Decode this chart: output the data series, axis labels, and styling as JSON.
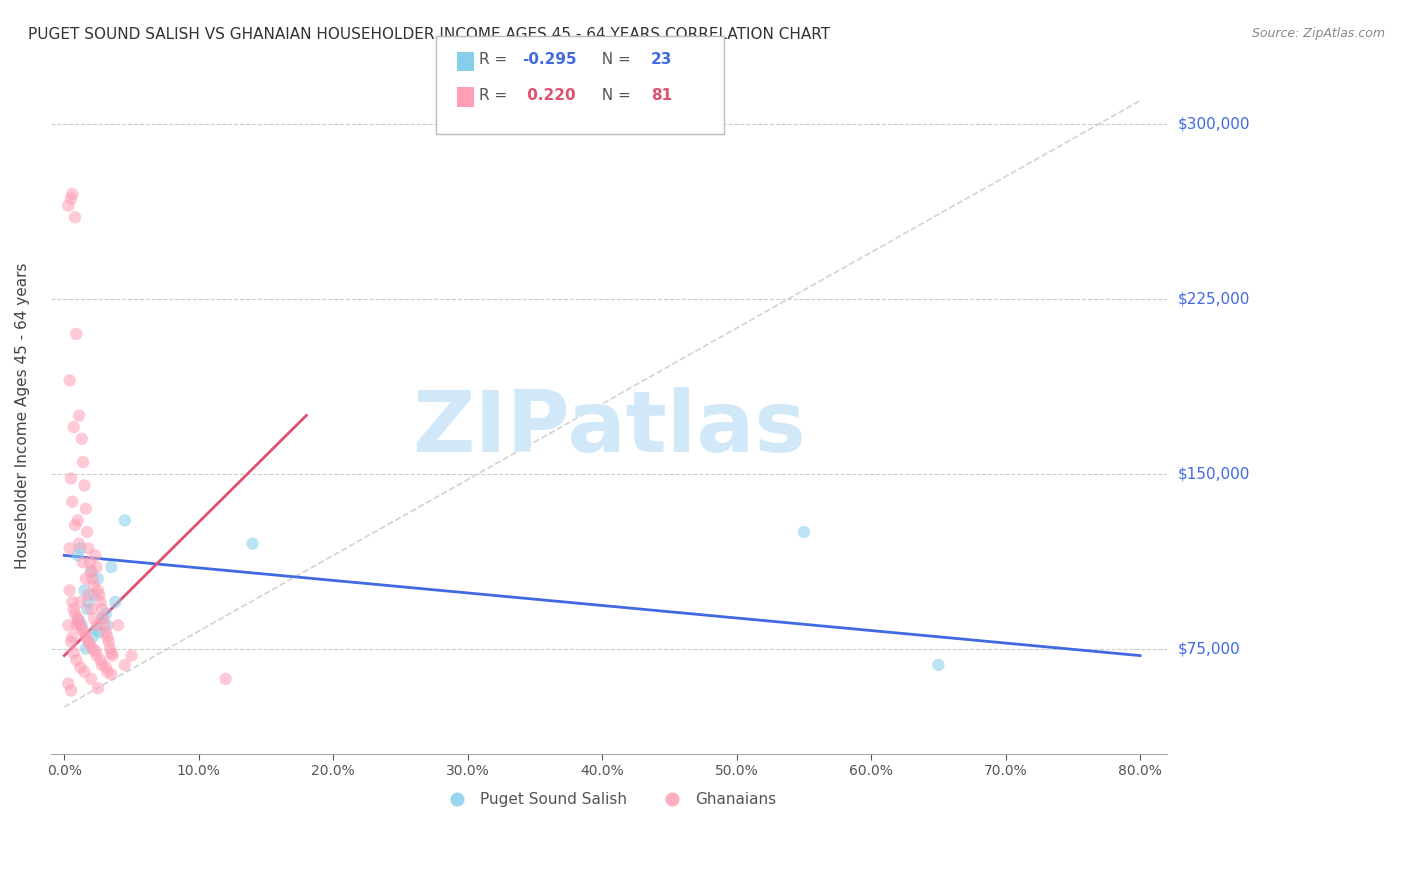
{
  "title": "PUGET SOUND SALISH VS GHANAIAN HOUSEHOLDER INCOME AGES 45 - 64 YEARS CORRELATION CHART",
  "source": "Source: ZipAtlas.com",
  "ylabel": "Householder Income Ages 45 - 64 years",
  "xlabel_ticks": [
    "0.0%",
    "10.0%",
    "20.0%",
    "30.0%",
    "40.0%",
    "50.0%",
    "60.0%",
    "70.0%",
    "80.0%"
  ],
  "xlabel_vals": [
    0.0,
    10.0,
    20.0,
    30.0,
    40.0,
    50.0,
    60.0,
    70.0,
    80.0
  ],
  "ytick_vals": [
    75000,
    150000,
    225000,
    300000
  ],
  "ytick_labels": [
    "$75,000",
    "$150,000",
    "$225,000",
    "$300,000"
  ],
  "ylim": [
    30000,
    320000
  ],
  "xlim": [
    -1.0,
    82.0
  ],
  "blue_color": "#87CEEB",
  "pink_color": "#FF9EB5",
  "blue_line_color": "#4169E1",
  "pink_line_color": "#E05070",
  "dashed_line_color": "#C0C0C0",
  "watermark_color": "#D0E8F8",
  "grid_color": "#CCCCCC",
  "axis_color": "#AAAAAA",
  "title_color": "#333333",
  "source_color": "#888888",
  "ytick_color": "#4169E1",
  "blue_scatter_x": [
    1.2,
    1.8,
    2.5,
    3.1,
    1.5,
    2.0,
    2.8,
    3.5,
    1.0,
    1.7,
    2.2,
    4.5,
    1.3,
    2.6,
    3.8,
    1.1,
    2.1,
    3.2,
    1.6,
    2.4,
    55.0,
    65.0,
    14.0
  ],
  "blue_scatter_y": [
    118000,
    95000,
    105000,
    90000,
    100000,
    108000,
    88000,
    110000,
    115000,
    92000,
    98000,
    130000,
    85000,
    82000,
    95000,
    87000,
    80000,
    85000,
    75000,
    83000,
    125000,
    68000,
    120000
  ],
  "pink_scatter_x": [
    0.3,
    0.5,
    0.6,
    0.8,
    0.9,
    1.1,
    1.3,
    1.4,
    1.5,
    1.6,
    1.7,
    1.8,
    1.9,
    2.0,
    2.1,
    2.2,
    2.3,
    2.4,
    2.5,
    2.6,
    2.7,
    2.8,
    2.9,
    3.0,
    3.1,
    3.2,
    3.3,
    3.4,
    3.5,
    3.6,
    0.4,
    0.7,
    1.0,
    1.2,
    4.0,
    4.5,
    0.5,
    0.6,
    0.8,
    1.1,
    1.4,
    1.6,
    1.8,
    2.0,
    2.2,
    2.4,
    0.3,
    0.5,
    0.7,
    0.9,
    1.2,
    1.5,
    2.0,
    2.5,
    0.4,
    0.6,
    0.8,
    1.0,
    1.3,
    1.6,
    1.9,
    2.3,
    2.7,
    3.1,
    3.5,
    0.3,
    0.5,
    0.7,
    1.0,
    1.2,
    1.5,
    1.8,
    2.1,
    2.4,
    2.8,
    3.2,
    12.0,
    5.0,
    0.4,
    0.6,
    0.9
  ],
  "pink_scatter_y": [
    265000,
    268000,
    270000,
    260000,
    210000,
    175000,
    165000,
    155000,
    145000,
    135000,
    125000,
    118000,
    112000,
    108000,
    105000,
    102000,
    115000,
    110000,
    100000,
    98000,
    95000,
    92000,
    88000,
    85000,
    82000,
    80000,
    78000,
    75000,
    73000,
    72000,
    190000,
    170000,
    130000,
    95000,
    85000,
    68000,
    148000,
    138000,
    128000,
    120000,
    112000,
    105000,
    98000,
    92000,
    88000,
    85000,
    85000,
    78000,
    73000,
    70000,
    67000,
    65000,
    62000,
    58000,
    100000,
    95000,
    90000,
    87000,
    83000,
    80000,
    77000,
    74000,
    70000,
    67000,
    64000,
    60000,
    57000,
    92000,
    88000,
    85000,
    82000,
    78000,
    75000,
    72000,
    68000,
    65000,
    62000,
    72000,
    118000,
    80000,
    85000
  ],
  "blue_trendline_x": [
    0.0,
    80.0
  ],
  "blue_trendline_y": [
    115000,
    72000
  ],
  "pink_trendline_x": [
    0.0,
    18.0
  ],
  "pink_trendline_y": [
    72000,
    175000
  ],
  "dashed_trendline_x": [
    0.0,
    80.0
  ],
  "dashed_trendline_y": [
    50000,
    310000
  ],
  "watermark_text": "ZIPatlas",
  "background_color": "#FFFFFF",
  "marker_size": 80,
  "marker_alpha": 0.55,
  "legend_label_blue": "Puget Sound Salish",
  "legend_label_pink": "Ghanaians",
  "legend_R_blue": "-0.295",
  "legend_N_blue": "23",
  "legend_R_pink": "0.220",
  "legend_N_pink": "81"
}
